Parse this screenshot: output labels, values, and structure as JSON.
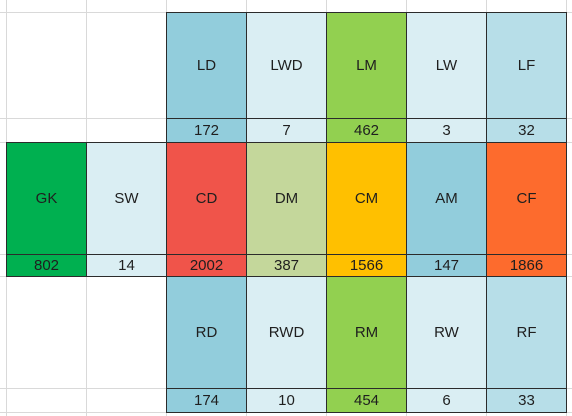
{
  "positions": [
    {
      "code": "LD",
      "value": "172",
      "color": "#92cddc"
    },
    {
      "code": "LWD",
      "value": "7",
      "color": "#daeef3"
    },
    {
      "code": "LM",
      "value": "462",
      "color": "#92d050"
    },
    {
      "code": "LW",
      "value": "3",
      "color": "#daeef3"
    },
    {
      "code": "LF",
      "value": "32",
      "color": "#b7dee8"
    },
    {
      "code": "GK",
      "value": "802",
      "color": "#00b050"
    },
    {
      "code": "SW",
      "value": "14",
      "color": "#daeef3"
    },
    {
      "code": "CD",
      "value": "2002",
      "color": "#f0544a"
    },
    {
      "code": "DM",
      "value": "387",
      "color": "#c4d79b"
    },
    {
      "code": "CM",
      "value": "1566",
      "color": "#ffc000"
    },
    {
      "code": "AM",
      "value": "147",
      "color": "#92cddc"
    },
    {
      "code": "CF",
      "value": "1866",
      "color": "#fd6b2d"
    },
    {
      "code": "RD",
      "value": "174",
      "color": "#92cddc"
    },
    {
      "code": "RWD",
      "value": "10",
      "color": "#daeef3"
    },
    {
      "code": "RM",
      "value": "454",
      "color": "#92d050"
    },
    {
      "code": "RW",
      "value": "6",
      "color": "#daeef3"
    },
    {
      "code": "RF",
      "value": "33",
      "color": "#b7dee8"
    }
  ]
}
